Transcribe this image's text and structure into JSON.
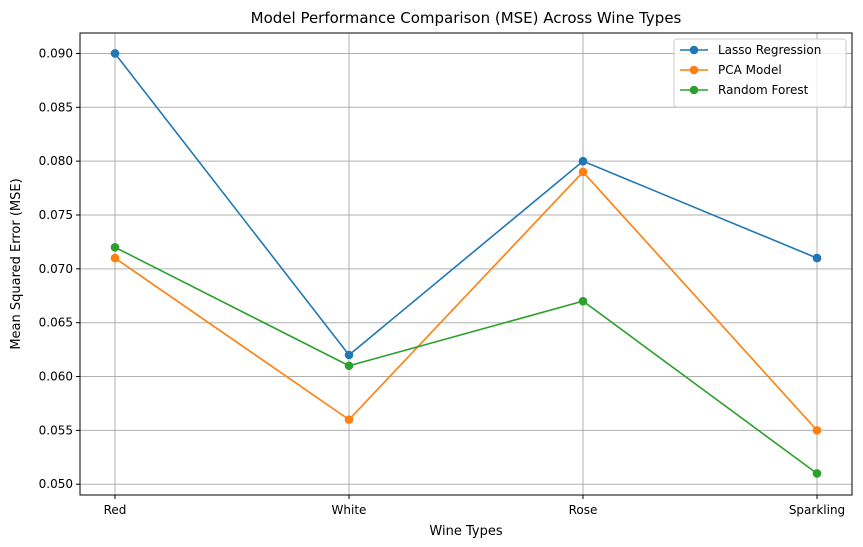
{
  "chart_data": {
    "type": "line",
    "title": "Model Performance Comparison (MSE) Across Wine Types",
    "xlabel": "Wine Types",
    "ylabel": "Mean Squared Error (MSE)",
    "categories": [
      "Red",
      "White",
      "Rose",
      "Sparkling"
    ],
    "ylim": [
      0.049,
      0.0919
    ],
    "yticks": [
      "0.050",
      "0.055",
      "0.060",
      "0.065",
      "0.070",
      "0.075",
      "0.080",
      "0.085",
      "0.090"
    ],
    "grid": true,
    "legend_position": "top-right",
    "series": [
      {
        "name": "Lasso Regression",
        "color": "#1f77b4",
        "values": [
          0.09,
          0.062,
          0.08,
          0.071
        ]
      },
      {
        "name": "PCA Model",
        "color": "#ff7f0e",
        "values": [
          0.071,
          0.056,
          0.079,
          0.055
        ]
      },
      {
        "name": "Random Forest",
        "color": "#2ca02c",
        "values": [
          0.072,
          0.061,
          0.067,
          0.051
        ]
      }
    ]
  }
}
